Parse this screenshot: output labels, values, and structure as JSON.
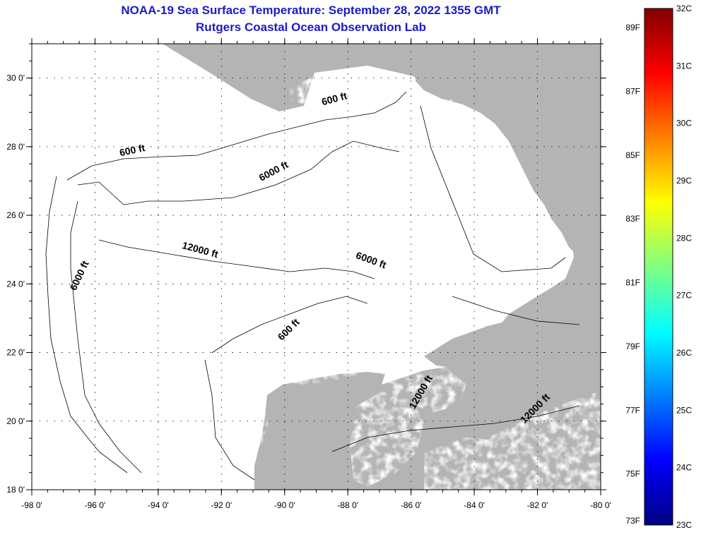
{
  "title": "NOAA-19 Sea Surface Temperature:  September 28, 2022 1355 GMT",
  "subtitle": "Rutgers Coastal Ocean Observation Lab",
  "map": {
    "lon_min": -98,
    "lon_max": -80,
    "lat_min": 18,
    "lat_max": 31,
    "lat_ticks": [
      {
        "v": 18,
        "label": "18 0'"
      },
      {
        "v": 20,
        "label": "20 0'"
      },
      {
        "v": 22,
        "label": "22 0'"
      },
      {
        "v": 24,
        "label": "24 0'"
      },
      {
        "v": 26,
        "label": "26 0'"
      },
      {
        "v": 28,
        "label": "28 0'"
      },
      {
        "v": 30,
        "label": "30 0'"
      }
    ],
    "lon_ticks": [
      {
        "v": -98,
        "label": "-98 0'"
      },
      {
        "v": -96,
        "label": "-96 0'"
      },
      {
        "v": -94,
        "label": "-94 0'"
      },
      {
        "v": -92,
        "label": "-92 0'"
      },
      {
        "v": -90,
        "label": "-90 0'"
      },
      {
        "v": -88,
        "label": "-88 0'"
      },
      {
        "v": -86,
        "label": "-86 0'"
      },
      {
        "v": -84,
        "label": "-84 0'"
      },
      {
        "v": -82,
        "label": "-82 0'"
      },
      {
        "v": -80,
        "label": "-80 0'"
      }
    ],
    "contour_labels": [
      {
        "text": "600 ft",
        "lon": -88.4,
        "lat": 29.3,
        "rot": -15
      },
      {
        "text": "600 ft",
        "lon": -94.8,
        "lat": 27.8,
        "rot": -12
      },
      {
        "text": "6000 ft",
        "lon": -90.3,
        "lat": 27.2,
        "rot": -28
      },
      {
        "text": "12000 ft",
        "lon": -92.7,
        "lat": 24.9,
        "rot": 15
      },
      {
        "text": "6000 ft",
        "lon": -87.3,
        "lat": 24.6,
        "rot": 20
      },
      {
        "text": "6000 ft",
        "lon": -96.4,
        "lat": 24.2,
        "rot": -65
      },
      {
        "text": "600 ft",
        "lon": -89.8,
        "lat": 22.6,
        "rot": -45
      },
      {
        "text": "12000 ft",
        "lon": -85.6,
        "lat": 20.8,
        "rot": -60
      },
      {
        "text": "12000 ft",
        "lon": -82.0,
        "lat": 20.3,
        "rot": -45
      }
    ]
  },
  "colorbar": {
    "f_labels": [
      {
        "v": 89,
        "label": "89F"
      },
      {
        "v": 87,
        "label": "87F"
      },
      {
        "v": 85,
        "label": "85F"
      },
      {
        "v": 83,
        "label": "83F"
      },
      {
        "v": 81,
        "label": "81F"
      },
      {
        "v": 79,
        "label": "79F"
      },
      {
        "v": 77,
        "label": "77F"
      },
      {
        "v": 75,
        "label": "75F"
      },
      {
        "v": 73,
        "label": "73F"
      }
    ],
    "c_labels": [
      {
        "v": 32,
        "label": "32C"
      },
      {
        "v": 31,
        "label": "31C"
      },
      {
        "v": 30,
        "label": "30C"
      },
      {
        "v": 29,
        "label": "29C"
      },
      {
        "v": 28,
        "label": "28C"
      },
      {
        "v": 27,
        "label": "27C"
      },
      {
        "v": 26,
        "label": "26C"
      },
      {
        "v": 25,
        "label": "25C"
      },
      {
        "v": 24,
        "label": "24C"
      },
      {
        "v": 23,
        "label": "23C"
      }
    ],
    "c_min": 23,
    "c_max": 32,
    "colors": [
      "#000080",
      "#0000ff",
      "#0080ff",
      "#00ffff",
      "#80ff80",
      "#ffff00",
      "#ff8000",
      "#ff0000",
      "#800000"
    ]
  },
  "land_color": "#b4b4b4"
}
